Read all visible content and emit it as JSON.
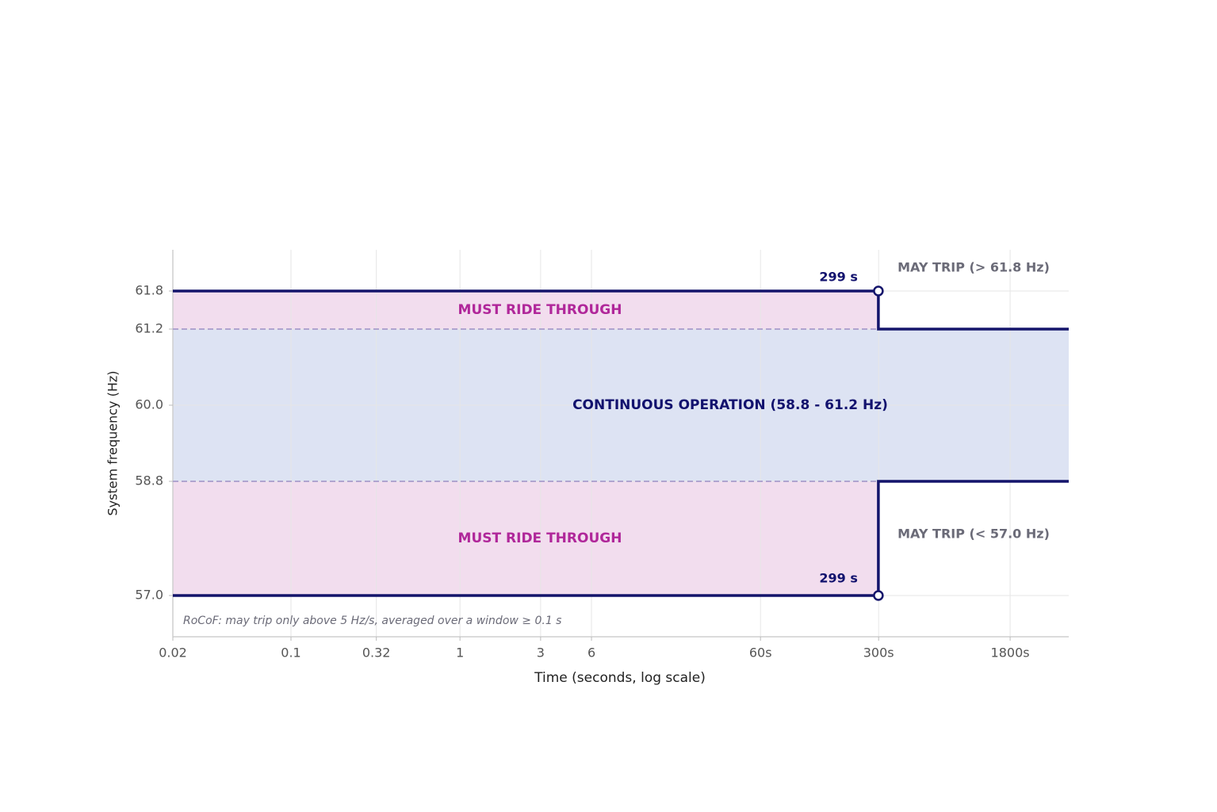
{
  "chart_data": {
    "type": "step-envelope",
    "xlabel": "Time (seconds, log scale)",
    "ylabel": "System frequency (Hz)",
    "xscale": "log",
    "xlim": [
      0.02,
      4000
    ],
    "ylim": [
      56.35,
      62.45
    ],
    "xticks": [
      0.02,
      0.1,
      0.32,
      1,
      3,
      6,
      {
        "value": 60,
        "label": "60s"
      },
      {
        "value": 300,
        "label": "300s"
      },
      {
        "value": 1800,
        "label": "1800s"
      }
    ],
    "yticks": [
      61.8,
      61.2,
      {
        "value": 60,
        "label": "60.0"
      },
      58.8,
      {
        "value": 57,
        "label": "57.0"
      }
    ],
    "grid": true,
    "bands": [
      {
        "name": "MUST RIDE THROUGH",
        "color": "#f2ddee",
        "label_color": "#b0279a",
        "x": [
          0.02,
          299
        ],
        "y": [
          61.2,
          61.8
        ]
      },
      {
        "name": "CONTINUOUS OPERATION  (58.8 - 61.2 Hz)",
        "color": "#dde3f3",
        "label_color": "#12126e",
        "x": [
          0.02,
          4000
        ],
        "y": [
          58.8,
          61.2
        ]
      },
      {
        "name": "MUST RIDE THROUGH",
        "color": "#f2ddee",
        "label_color": "#b0279a",
        "x": [
          0.02,
          299
        ],
        "y": [
          57,
          58.8
        ]
      }
    ],
    "dashed_lines": {
      "color": "#a89ccc",
      "x": [
        0.02,
        299
      ],
      "y": [
        61.2,
        58.8
      ]
    },
    "series": [
      {
        "name": "upper limit",
        "color": "#14146b",
        "x": [
          0.02,
          299,
          299,
          4000
        ],
        "values": [
          61.8,
          61.8,
          61.2,
          61.2
        ]
      },
      {
        "name": "lower limit",
        "color": "#14146b",
        "x": [
          0.02,
          299,
          299,
          4000
        ],
        "values": [
          57,
          57,
          58.8,
          58.8
        ]
      }
    ],
    "markers": {
      "x": [
        299,
        299
      ],
      "values": [
        61.8,
        57
      ],
      "value_labels": [
        "299 s",
        "299 s"
      ]
    },
    "annotations": [
      "MAY TRIP  (> 61.8 Hz)",
      "MAY TRIP  (< 57.0 Hz)",
      "RoCoF: may trip only above 5 Hz/s, averaged over a window ≥ 0.1 s"
    ]
  }
}
